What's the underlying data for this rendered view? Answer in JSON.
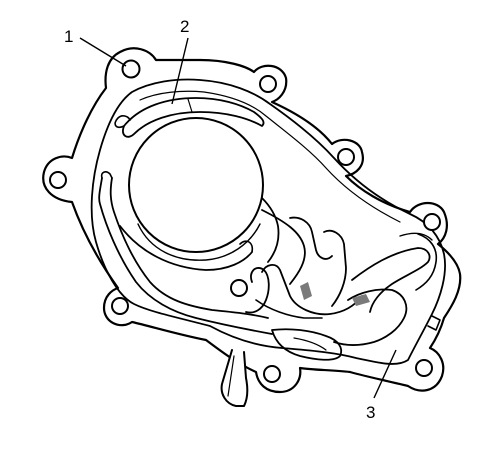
{
  "diagram": {
    "callouts": [
      {
        "id": "1",
        "label": "1"
      },
      {
        "id": "2",
        "label": "2"
      },
      {
        "id": "3",
        "label": "3"
      }
    ]
  },
  "colors": {
    "line": "#000000",
    "fill": "#ffffff",
    "shade": "#7a7a7a"
  }
}
